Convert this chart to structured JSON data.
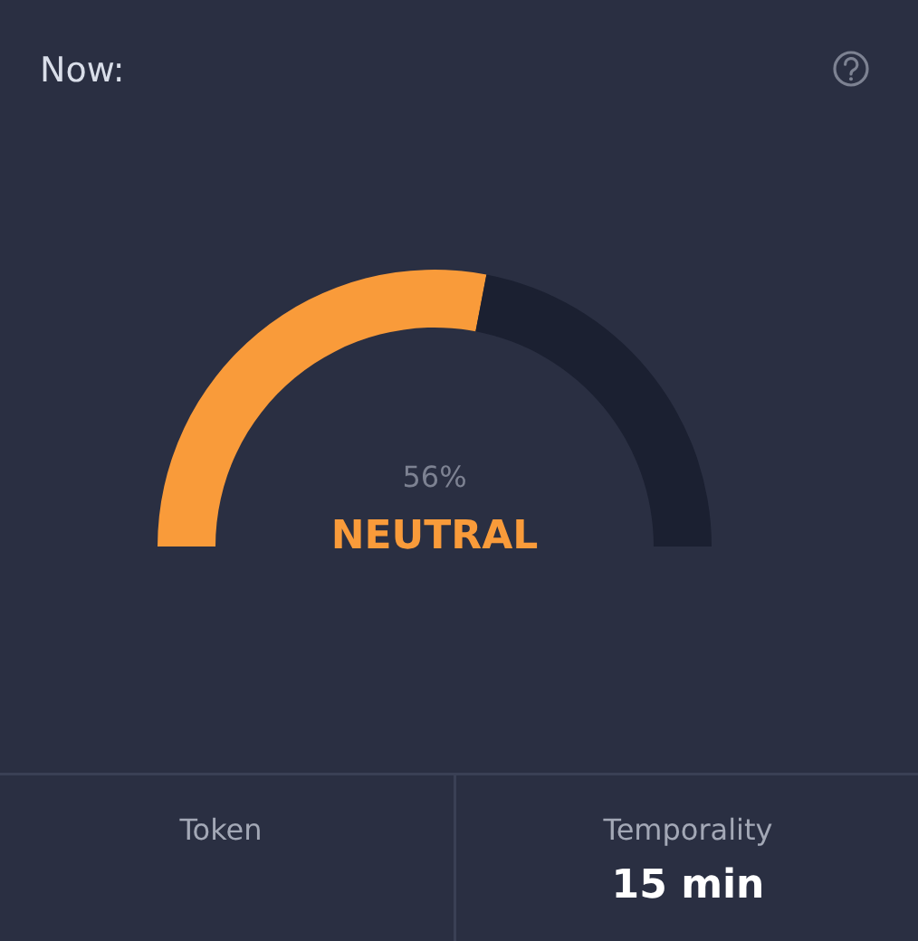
{
  "chart_data": {
    "type": "donut",
    "title": "Now:",
    "categories": [
      null,
      null
    ],
    "values": [
      56,
      44
    ],
    "colors": [
      "#f99b3a",
      "#1b2031"
    ],
    "value_labels": [
      "56%",
      null
    ],
    "annotations": [
      "NEUTRAL",
      "Token",
      "Temporality",
      "15 min"
    ]
  }
}
